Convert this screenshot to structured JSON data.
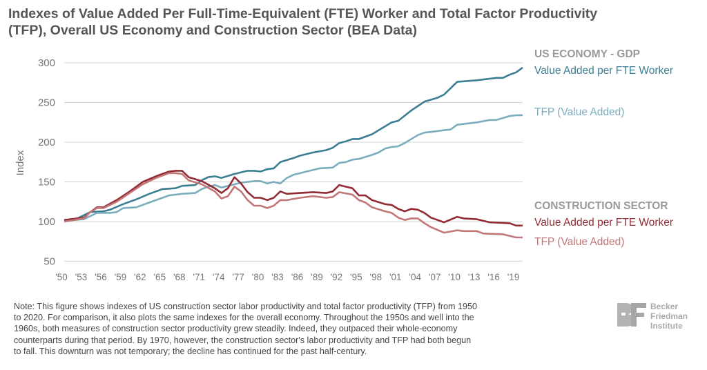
{
  "title_lines": [
    "Indexes of Value Added Per Full-Time-Equivalent (FTE) Worker and Total Factor Productivity",
    "(TFP), Overall US Economy and Construction Sector (BEA Data)"
  ],
  "legend": {
    "us_header": "US ECONOMY - GDP",
    "us_va": "Value Added per FTE Worker",
    "us_tfp": "TFP (Value Added)",
    "con_header": "CONSTRUCTION SECTOR",
    "con_va": "Value Added per FTE Worker",
    "con_tfp": "TFP (Value Added)"
  },
  "note_lines": [
    "Note: This figure shows indexes of US construction sector labor productivity and total factor productivity (TFP) from 1950",
    "to 2020. For comparison, it also plots the same indexes for the overall economy. Throughout the 1950s and well into the",
    "1960s, both measures of construction sector productivity grew steadily. Indeed, they outpaced their whole-economy",
    "counterparts during that period. By 1970, however, the construction sector's labor productivity and TFP had both begun",
    "to fall. This downturn was not temporary; the decline has continued for the past half-century."
  ],
  "logo": {
    "mark": "BF",
    "text": [
      "Becker",
      "Friedman",
      "Institute"
    ]
  },
  "chart_data": {
    "type": "line",
    "title": "Indexes of Value Added Per Full-Time-Equivalent (FTE) Worker and Total Factor Productivity (TFP), Overall US Economy and Construction Sector (BEA Data)",
    "xlabel": "",
    "ylabel": "Index",
    "xlim": [
      1950,
      2020
    ],
    "ylim": [
      50,
      300
    ],
    "yticks": [
      50,
      100,
      150,
      200,
      250,
      300
    ],
    "xtick_labels": [
      "'50",
      "'53",
      "'56",
      "'59",
      "'62",
      "'65",
      "'68",
      "'71",
      "'74",
      "'77",
      "'80",
      "'83",
      "'86",
      "'89",
      "'92",
      "'95",
      "'98",
      "'01",
      "'04",
      "'07",
      "'10",
      "'13",
      "'16",
      "'19"
    ],
    "xtick_years": [
      1950,
      1953,
      1956,
      1959,
      1962,
      1965,
      1968,
      1971,
      1974,
      1977,
      1980,
      1983,
      1986,
      1989,
      1992,
      1995,
      1998,
      2001,
      2004,
      2007,
      2010,
      2013,
      2016,
      2019
    ],
    "grid": "horizontal",
    "legend_placement": "right",
    "series": [
      {
        "name": "US Economy - GDP: Value Added per FTE Worker",
        "color": "#3b7d93",
        "points": [
          [
            1950,
            101
          ],
          [
            1952,
            104
          ],
          [
            1954,
            112
          ],
          [
            1956,
            113
          ],
          [
            1957,
            115
          ],
          [
            1959,
            122
          ],
          [
            1961,
            128
          ],
          [
            1963,
            135
          ],
          [
            1965,
            141
          ],
          [
            1967,
            142
          ],
          [
            1968,
            145
          ],
          [
            1970,
            146
          ],
          [
            1971,
            152
          ],
          [
            1972,
            156
          ],
          [
            1973,
            157
          ],
          [
            1974,
            155
          ],
          [
            1976,
            160
          ],
          [
            1978,
            164
          ],
          [
            1979,
            164
          ],
          [
            1980,
            163
          ],
          [
            1981,
            166
          ],
          [
            1982,
            167
          ],
          [
            1983,
            175
          ],
          [
            1985,
            180
          ],
          [
            1986,
            183
          ],
          [
            1988,
            187
          ],
          [
            1990,
            190
          ],
          [
            1991,
            193
          ],
          [
            1992,
            199
          ],
          [
            1993,
            201
          ],
          [
            1994,
            204
          ],
          [
            1995,
            204
          ],
          [
            1997,
            210
          ],
          [
            1998,
            215
          ],
          [
            1999,
            220
          ],
          [
            2000,
            225
          ],
          [
            2001,
            227
          ],
          [
            2003,
            240
          ],
          [
            2005,
            251
          ],
          [
            2007,
            256
          ],
          [
            2008,
            260
          ],
          [
            2009,
            268
          ],
          [
            2010,
            276
          ],
          [
            2013,
            278
          ],
          [
            2016,
            281
          ],
          [
            2017,
            281
          ],
          [
            2018,
            285
          ],
          [
            2019,
            288
          ],
          [
            2020,
            294
          ]
        ]
      },
      {
        "name": "US Economy - GDP: TFP (Value Added)",
        "color": "#7badbd",
        "points": [
          [
            1950,
            101
          ],
          [
            1953,
            103
          ],
          [
            1955,
            111
          ],
          [
            1957,
            111
          ],
          [
            1958,
            112
          ],
          [
            1959,
            117
          ],
          [
            1961,
            118
          ],
          [
            1963,
            124
          ],
          [
            1965,
            130
          ],
          [
            1966,
            133
          ],
          [
            1967,
            134
          ],
          [
            1968,
            135
          ],
          [
            1970,
            136
          ],
          [
            1971,
            141
          ],
          [
            1972,
            144
          ],
          [
            1973,
            146
          ],
          [
            1974,
            143
          ],
          [
            1975,
            145
          ],
          [
            1977,
            149
          ],
          [
            1979,
            151
          ],
          [
            1980,
            151
          ],
          [
            1981,
            148
          ],
          [
            1982,
            150
          ],
          [
            1983,
            148
          ],
          [
            1984,
            155
          ],
          [
            1985,
            159
          ],
          [
            1987,
            163
          ],
          [
            1989,
            167
          ],
          [
            1991,
            168
          ],
          [
            1992,
            174
          ],
          [
            1993,
            175
          ],
          [
            1994,
            178
          ],
          [
            1995,
            179
          ],
          [
            1997,
            184
          ],
          [
            1998,
            187
          ],
          [
            1999,
            192
          ],
          [
            2000,
            194
          ],
          [
            2001,
            195
          ],
          [
            2002,
            199
          ],
          [
            2004,
            209
          ],
          [
            2005,
            212
          ],
          [
            2007,
            214
          ],
          [
            2009,
            216
          ],
          [
            2010,
            222
          ],
          [
            2013,
            225
          ],
          [
            2015,
            228
          ],
          [
            2016,
            228
          ],
          [
            2018,
            233
          ],
          [
            2019,
            234
          ],
          [
            2020,
            234
          ]
        ]
      },
      {
        "name": "Construction Sector: Value Added per FTE Worker",
        "color": "#922b34",
        "points": [
          [
            1950,
            102
          ],
          [
            1953,
            105
          ],
          [
            1954,
            112
          ],
          [
            1955,
            118
          ],
          [
            1956,
            118
          ],
          [
            1958,
            127
          ],
          [
            1960,
            138
          ],
          [
            1962,
            150
          ],
          [
            1964,
            157
          ],
          [
            1966,
            163
          ],
          [
            1967,
            164
          ],
          [
            1968,
            164
          ],
          [
            1969,
            156
          ],
          [
            1971,
            151
          ],
          [
            1973,
            142
          ],
          [
            1974,
            136
          ],
          [
            1975,
            142
          ],
          [
            1976,
            156
          ],
          [
            1977,
            148
          ],
          [
            1978,
            137
          ],
          [
            1979,
            130
          ],
          [
            1980,
            130
          ],
          [
            1981,
            127
          ],
          [
            1982,
            130
          ],
          [
            1983,
            138
          ],
          [
            1984,
            135
          ],
          [
            1986,
            136
          ],
          [
            1988,
            137
          ],
          [
            1990,
            136
          ],
          [
            1991,
            138
          ],
          [
            1992,
            146
          ],
          [
            1994,
            142
          ],
          [
            1995,
            133
          ],
          [
            1996,
            133
          ],
          [
            1997,
            127
          ],
          [
            1999,
            122
          ],
          [
            2000,
            121
          ],
          [
            2001,
            116
          ],
          [
            2002,
            113
          ],
          [
            2003,
            116
          ],
          [
            2004,
            115
          ],
          [
            2005,
            111
          ],
          [
            2006,
            105
          ],
          [
            2008,
            99
          ],
          [
            2010,
            106
          ],
          [
            2011,
            104
          ],
          [
            2013,
            103
          ],
          [
            2015,
            99
          ],
          [
            2018,
            98
          ],
          [
            2019,
            95
          ],
          [
            2020,
            95
          ]
        ]
      },
      {
        "name": "Construction Sector: TFP (Value Added)",
        "color": "#c17677",
        "points": [
          [
            1950,
            100
          ],
          [
            1953,
            104
          ],
          [
            1954,
            112
          ],
          [
            1955,
            117
          ],
          [
            1956,
            117
          ],
          [
            1958,
            125
          ],
          [
            1960,
            136
          ],
          [
            1962,
            147
          ],
          [
            1964,
            155
          ],
          [
            1966,
            161
          ],
          [
            1967,
            161
          ],
          [
            1968,
            160
          ],
          [
            1969,
            152
          ],
          [
            1971,
            147
          ],
          [
            1973,
            138
          ],
          [
            1974,
            129
          ],
          [
            1975,
            132
          ],
          [
            1976,
            144
          ],
          [
            1977,
            138
          ],
          [
            1978,
            127
          ],
          [
            1979,
            120
          ],
          [
            1980,
            120
          ],
          [
            1981,
            117
          ],
          [
            1982,
            120
          ],
          [
            1983,
            127
          ],
          [
            1984,
            127
          ],
          [
            1986,
            130
          ],
          [
            1988,
            132
          ],
          [
            1990,
            130
          ],
          [
            1991,
            131
          ],
          [
            1992,
            137
          ],
          [
            1994,
            134
          ],
          [
            1995,
            127
          ],
          [
            1996,
            124
          ],
          [
            1997,
            118
          ],
          [
            1999,
            113
          ],
          [
            2000,
            111
          ],
          [
            2001,
            105
          ],
          [
            2002,
            102
          ],
          [
            2003,
            104
          ],
          [
            2004,
            104
          ],
          [
            2005,
            98
          ],
          [
            2006,
            93
          ],
          [
            2008,
            86
          ],
          [
            2010,
            89
          ],
          [
            2011,
            88
          ],
          [
            2013,
            88
          ],
          [
            2014,
            85
          ],
          [
            2017,
            84
          ],
          [
            2019,
            80
          ],
          [
            2020,
            80
          ]
        ]
      }
    ]
  }
}
